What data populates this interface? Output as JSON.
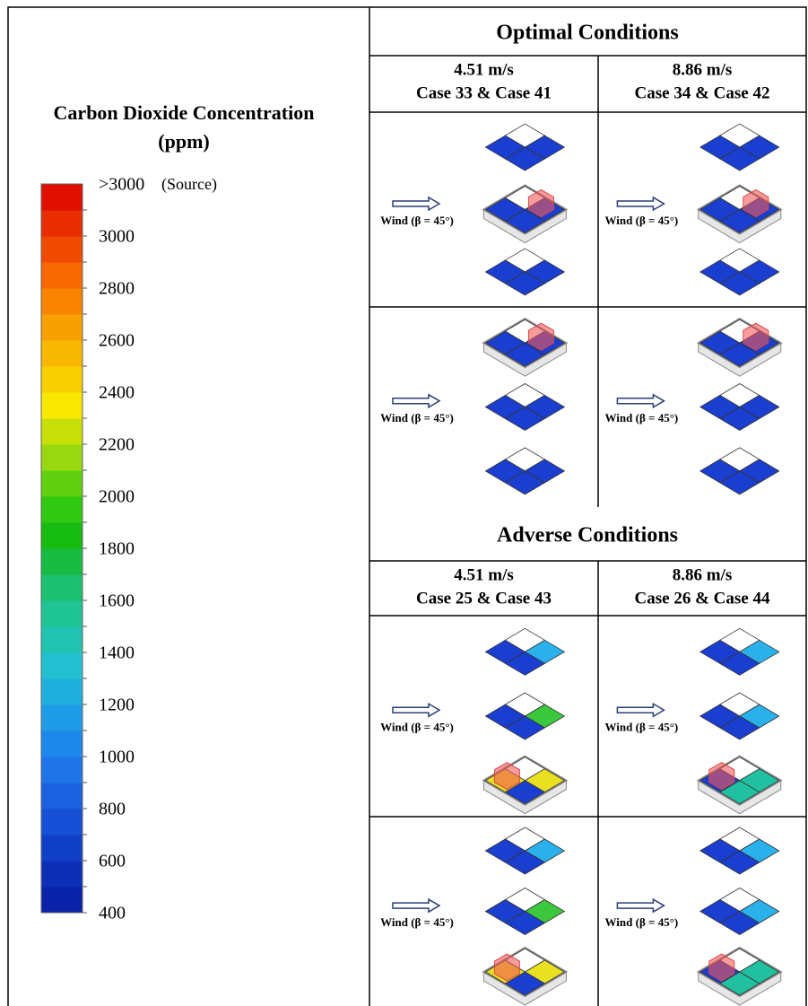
{
  "legend": {
    "title": "Carbon Dioxide Concentration",
    "unit": "(ppm)",
    "top_label": ">3000",
    "top_note": "(Source)",
    "ticks": [
      3000,
      2800,
      2600,
      2400,
      2200,
      2000,
      1800,
      1600,
      1400,
      1200,
      1000,
      800,
      600,
      400
    ],
    "colors": [
      "#0a22a8",
      "#0d2fb8",
      "#1040c8",
      "#1550d6",
      "#1a62e0",
      "#1f74e8",
      "#1d88ec",
      "#1f9ce8",
      "#20b0e0",
      "#22c0d0",
      "#20c4b0",
      "#1ec494",
      "#1cc070",
      "#18bc40",
      "#16bc10",
      "#30c810",
      "#60d010",
      "#98d810",
      "#c8e008",
      "#f8e800",
      "#f8d000",
      "#f8b800",
      "#f8a000",
      "#f88400",
      "#f86800",
      "#f04a00",
      "#e82e00",
      "#e01000"
    ]
  },
  "sections": [
    {
      "title": "Optimal Conditions",
      "columns": [
        {
          "speed": "4.51 m/s",
          "cases": "Case 33 & Case 41"
        },
        {
          "speed": "8.86 m/s",
          "cases": "Case 34 & Case 42"
        }
      ]
    },
    {
      "title": "Adverse Conditions",
      "columns": [
        {
          "speed": "4.51 m/s",
          "cases": "Case 25 & Case 43"
        },
        {
          "speed": "8.86 m/s",
          "cases": "Case 26 & Case 44"
        }
      ]
    }
  ],
  "wind_label": "Wind (β = 45°)"
}
